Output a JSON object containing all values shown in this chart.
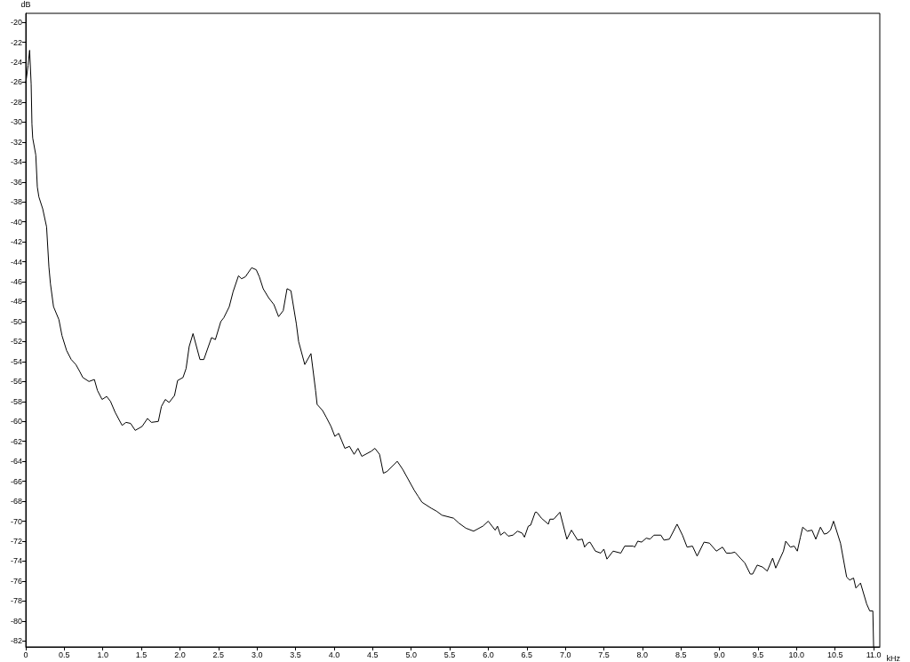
{
  "chart_data": {
    "type": "line",
    "xlabel": "kHz",
    "ylabel": "dB",
    "color": "#000000",
    "grid": false,
    "marker": "none",
    "line_style": "solid",
    "xlim": [
      0,
      11.08
    ],
    "ylim": [
      -82.6,
      -19.1
    ],
    "xticks": [
      0,
      0.5,
      {
        "value": 1,
        "label": "1.0"
      },
      1.5,
      {
        "value": 2,
        "label": "2.0"
      },
      2.5,
      {
        "value": 3,
        "label": "3.0"
      },
      3.5,
      {
        "value": 4,
        "label": "4.0"
      },
      4.5,
      {
        "value": 5,
        "label": "5.0"
      },
      5.5,
      {
        "value": 6,
        "label": "6.0"
      },
      6.5,
      {
        "value": 7,
        "label": "7.0"
      },
      7.5,
      {
        "value": 8,
        "label": "8.0"
      },
      8.5,
      {
        "value": 9,
        "label": "9.0"
      },
      9.5,
      {
        "value": 10,
        "label": "10.0"
      },
      10.5,
      {
        "value": 11,
        "label": "11.0"
      }
    ],
    "yticks": [
      -20,
      -22,
      -24,
      -26,
      -28,
      -30,
      -32,
      -34,
      -36,
      -38,
      -40,
      -42,
      -44,
      -46,
      -48,
      -50,
      -52,
      -54,
      -56,
      -58,
      -60,
      -62,
      -64,
      -66,
      -68,
      -70,
      -72,
      -74,
      -76,
      -78,
      -80,
      -82
    ],
    "x": [
      0,
      0.03,
      0.05,
      0.07,
      0.08,
      0.09,
      0.13,
      0.15,
      0.17,
      0.22,
      0.27,
      0.3,
      0.32,
      0.36,
      0.43,
      0.47,
      0.53,
      0.59,
      0.65,
      0.7,
      0.74,
      0.82,
      0.89,
      0.93,
      0.99,
      1.05,
      1.1,
      1.16,
      1.25,
      1.3,
      1.36,
      1.42,
      1.51,
      1.58,
      1.63,
      1.72,
      1.76,
      1.81,
      1.86,
      1.93,
      1.97,
      2.04,
      2.08,
      2.12,
      2.17,
      2.26,
      2.31,
      2.41,
      2.46,
      2.53,
      2.57,
      2.64,
      2.69,
      2.76,
      2.8,
      2.85,
      2.93,
      2.99,
      3.03,
      3.08,
      3.15,
      3.22,
      3.28,
      3.34,
      3.39,
      3.44,
      3.51,
      3.54,
      3.62,
      3.7,
      3.76,
      3.78,
      3.85,
      3.9,
      3.96,
      4.01,
      4.06,
      4.14,
      4.2,
      4.26,
      4.31,
      4.36,
      4.48,
      4.53,
      4.59,
      4.64,
      4.69,
      4.82,
      4.89,
      5.04,
      5.09,
      5.14,
      5.2,
      5.26,
      5.33,
      5.4,
      5.55,
      5.62,
      5.71,
      5.81,
      5.93,
      6.0,
      6.09,
      6.12,
      6.16,
      6.21,
      6.26,
      6.32,
      6.38,
      6.44,
      6.47,
      6.52,
      6.55,
      6.61,
      6.63,
      6.69,
      6.78,
      6.8,
      6.85,
      6.93,
      7.02,
      7.08,
      7.16,
      7.22,
      7.25,
      7.29,
      7.32,
      7.39,
      7.46,
      7.5,
      7.54,
      7.62,
      7.72,
      7.77,
      7.88,
      7.9,
      7.94,
      7.99,
      8.05,
      8.1,
      8.15,
      8.24,
      8.28,
      8.35,
      8.45,
      8.52,
      8.58,
      8.65,
      8.71,
      8.8,
      8.87,
      8.96,
      9.04,
      9.09,
      9.15,
      9.2,
      9.27,
      9.33,
      9.4,
      9.43,
      9.49,
      9.56,
      9.62,
      9.69,
      9.73,
      9.83,
      9.86,
      9.92,
      9.97,
      10.01,
      10.05,
      10.08,
      10.14,
      10.2,
      10.25,
      10.31,
      10.36,
      10.4,
      10.44,
      10.48,
      10.57,
      10.65,
      10.69,
      10.74,
      10.77,
      10.83,
      10.91,
      10.95,
      10.99,
      11.0
    ],
    "values": [
      -26.1,
      -24.3,
      -22.8,
      -26.2,
      -30.2,
      -31.6,
      -33.3,
      -36.5,
      -37.5,
      -38.7,
      -40.5,
      -44.5,
      -46.2,
      -48.5,
      -49.8,
      -51.4,
      -52.9,
      -53.8,
      -54.3,
      -55.0,
      -55.6,
      -56.0,
      -55.8,
      -56.9,
      -57.8,
      -57.5,
      -58.0,
      -59.1,
      -60.4,
      -60.1,
      -60.2,
      -60.9,
      -60.5,
      -59.7,
      -60.1,
      -60.0,
      -58.5,
      -57.8,
      -58.1,
      -57.4,
      -55.9,
      -55.6,
      -54.7,
      -52.5,
      -51.2,
      -53.8,
      -53.8,
      -51.6,
      -51.8,
      -50.0,
      -49.6,
      -48.5,
      -47.0,
      -45.4,
      -45.7,
      -45.5,
      -44.6,
      -44.8,
      -45.5,
      -46.7,
      -47.6,
      -48.3,
      -49.5,
      -48.9,
      -46.7,
      -46.9,
      -50.2,
      -52.0,
      -54.3,
      -53.2,
      -56.9,
      -58.3,
      -58.9,
      -59.6,
      -60.5,
      -61.5,
      -61.2,
      -62.7,
      -62.5,
      -63.3,
      -62.7,
      -63.5,
      -63.0,
      -62.7,
      -63.3,
      -65.2,
      -65.0,
      -64.0,
      -64.8,
      -66.9,
      -67.5,
      -68.1,
      -68.4,
      -68.7,
      -69.0,
      -69.4,
      -69.7,
      -70.2,
      -70.7,
      -71.0,
      -70.5,
      -70.0,
      -70.9,
      -70.5,
      -71.4,
      -71.1,
      -71.5,
      -71.4,
      -71.0,
      -71.2,
      -71.6,
      -70.5,
      -70.4,
      -69.1,
      -69.1,
      -69.7,
      -70.3,
      -69.8,
      -69.8,
      -69.1,
      -71.8,
      -70.9,
      -71.9,
      -71.8,
      -72.6,
      -72.2,
      -72.1,
      -73.0,
      -73.2,
      -72.8,
      -73.8,
      -73.0,
      -73.2,
      -72.5,
      -72.5,
      -72.6,
      -72.0,
      -72.1,
      -71.7,
      -71.8,
      -71.4,
      -71.4,
      -71.9,
      -71.8,
      -70.3,
      -71.4,
      -72.6,
      -72.5,
      -73.5,
      -72.1,
      -72.2,
      -73.0,
      -72.6,
      -73.2,
      -73.2,
      -73.1,
      -73.7,
      -74.2,
      -75.3,
      -75.3,
      -74.4,
      -74.6,
      -75.0,
      -73.7,
      -74.7,
      -73.0,
      -72.0,
      -72.6,
      -72.5,
      -73.0,
      -71.6,
      -70.6,
      -71.0,
      -70.9,
      -71.8,
      -70.6,
      -71.3,
      -71.2,
      -70.9,
      -70.0,
      -72.2,
      -75.6,
      -75.9,
      -75.7,
      -76.7,
      -76.2,
      -78.3,
      -79.0,
      -79.0,
      -82.6
    ]
  }
}
